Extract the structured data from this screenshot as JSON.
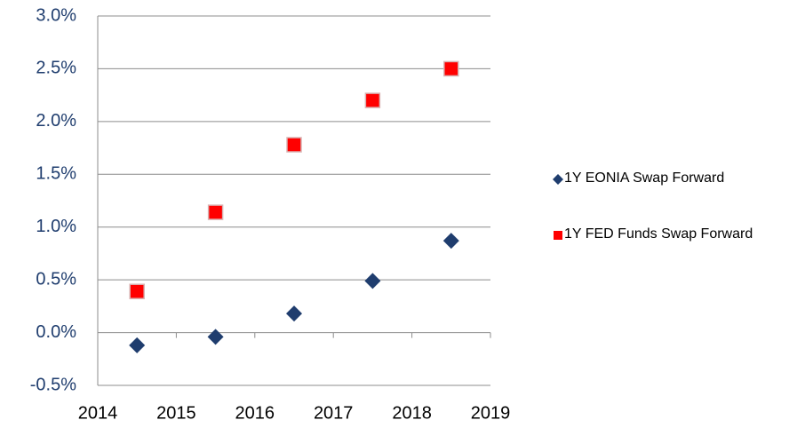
{
  "chart_data": {
    "type": "scatter",
    "xlim": [
      2014,
      2019
    ],
    "xticks": [
      2014,
      2015,
      2016,
      2017,
      2018,
      2019
    ],
    "ylim": [
      -0.5,
      3.0
    ],
    "yticks": [
      {
        "value": -0.5,
        "label": "-0.5%"
      },
      {
        "value": 0,
        "label": "0.0%"
      },
      {
        "value": 0.5,
        "label": "0.5%"
      },
      {
        "value": 1,
        "label": "1.0%"
      },
      {
        "value": 1.5,
        "label": "1.5%"
      },
      {
        "value": 2,
        "label": "2.0%"
      },
      {
        "value": 2.5,
        "label": "2.5%"
      },
      {
        "value": 3,
        "label": "3.0%"
      }
    ],
    "grid": true,
    "series": [
      {
        "name": "1Y EONIA Swap Forward",
        "color": "#1f3d6e",
        "marker": "diamond",
        "x": [
          2014.5,
          2015.5,
          2016.5,
          2017.5,
          2018.5
        ],
        "values": [
          -0.12,
          -0.04,
          0.18,
          0.49,
          0.87
        ]
      },
      {
        "name": "1Y FED Funds Swap Forward",
        "color": "#ff0000",
        "marker": "square",
        "x": [
          2014.5,
          2015.5,
          2016.5,
          2017.5,
          2018.5
        ],
        "values": [
          0.39,
          1.14,
          1.78,
          2.2,
          2.5
        ]
      }
    ]
  }
}
